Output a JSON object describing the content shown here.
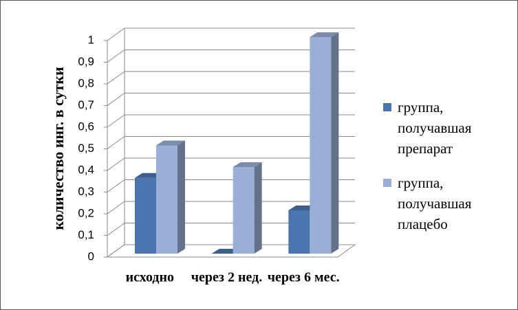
{
  "chart_data": {
    "type": "bar3d",
    "y_label": "количество инг. в сутки",
    "categories": [
      "исходно",
      "через 2 нед.",
      "через 6 мес."
    ],
    "series": [
      {
        "name": "группа, получавшая препарат",
        "color": "#4a76b0",
        "values": [
          0.35,
          0,
          0.2
        ]
      },
      {
        "name": "группа, получавшая плацебо",
        "color": "#9aafd8",
        "values": [
          0.5,
          0.4,
          1
        ]
      }
    ],
    "ylim": [
      0,
      1
    ],
    "yticks": [
      0,
      {
        "value": 0.1,
        "label": "0,1"
      },
      {
        "value": 0.2,
        "label": "0,2"
      },
      {
        "value": 0.3,
        "label": "0,3"
      },
      {
        "value": 0.4,
        "label": "0,4"
      },
      {
        "value": 0.5,
        "label": "0,5"
      },
      {
        "value": 0.6,
        "label": "0,6"
      },
      {
        "value": 0.7,
        "label": "0,7"
      },
      {
        "value": 0.8,
        "label": "0,8"
      },
      {
        "value": 0.9,
        "label": "0,9"
      },
      1
    ],
    "grid": true
  }
}
